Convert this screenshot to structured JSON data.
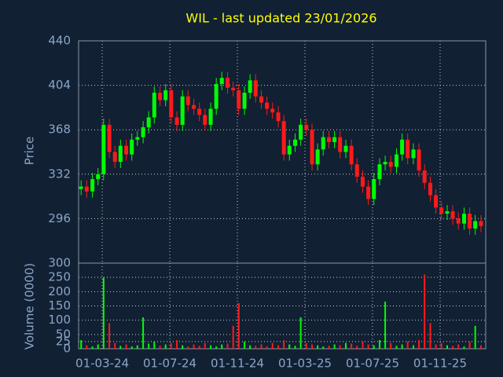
{
  "chart_data": [
    {
      "type": "candlestick",
      "title": "WIL - last updated 23/01/2026",
      "ylabel": "Price",
      "up_color": "#00ff00",
      "down_color": "#ff1a1a",
      "grid": true,
      "xlim": [
        0.6,
        24.7
      ],
      "ylim": [
        260,
        440
      ],
      "yticks": [
        296,
        332,
        368,
        404,
        440
      ],
      "xticks": [
        {
          "value": 2,
          "label": "01-03-24"
        },
        {
          "value": 6,
          "label": "01-07-24"
        },
        {
          "value": 10,
          "label": "01-11-24"
        },
        {
          "value": 14,
          "label": "01-03-25"
        },
        {
          "value": 18,
          "label": "01-07-25"
        },
        {
          "value": 22,
          "label": "01-11-25"
        }
      ],
      "x": [
        0.75,
        1.08,
        1.42,
        1.75,
        2.08,
        2.42,
        2.75,
        3.08,
        3.42,
        3.75,
        4.08,
        4.42,
        4.75,
        5.08,
        5.42,
        5.75,
        6.08,
        6.42,
        6.75,
        7.08,
        7.42,
        7.75,
        8.08,
        8.42,
        8.75,
        9.08,
        9.42,
        9.75,
        10.08,
        10.42,
        10.75,
        11.08,
        11.42,
        11.75,
        12.08,
        12.42,
        12.75,
        13.08,
        13.42,
        13.75,
        14.08,
        14.42,
        14.75,
        15.08,
        15.42,
        15.75,
        16.08,
        16.42,
        16.75,
        17.08,
        17.42,
        17.75,
        18.08,
        18.42,
        18.75,
        19.08,
        19.42,
        19.75,
        20.08,
        20.42,
        20.75,
        21.08,
        21.42,
        21.75,
        22.08,
        22.42,
        22.75,
        23.08,
        23.42,
        23.75,
        24.08,
        24.42
      ],
      "open": [
        320,
        322,
        318,
        328,
        332,
        372,
        350,
        342,
        355,
        348,
        360,
        362,
        370,
        378,
        398,
        392,
        400,
        378,
        372,
        395,
        388,
        385,
        380,
        372,
        385,
        405,
        410,
        402,
        400,
        385,
        398,
        408,
        395,
        390,
        385,
        382,
        375,
        348,
        355,
        360,
        372,
        368,
        340,
        352,
        362,
        358,
        362,
        350,
        355,
        340,
        330,
        322,
        312,
        328,
        340,
        342,
        338,
        348,
        360,
        345,
        352,
        335,
        325,
        315,
        305,
        300,
        302,
        296,
        292,
        300,
        288,
        294
      ],
      "high": [
        327,
        327,
        333,
        337,
        377,
        377,
        355,
        360,
        360,
        365,
        367,
        375,
        383,
        403,
        403,
        405,
        405,
        383,
        400,
        400,
        393,
        390,
        385,
        390,
        410,
        415,
        415,
        407,
        405,
        403,
        413,
        413,
        400,
        395,
        390,
        387,
        380,
        360,
        365,
        377,
        377,
        373,
        357,
        367,
        367,
        367,
        367,
        360,
        360,
        345,
        335,
        327,
        333,
        345,
        347,
        347,
        353,
        365,
        365,
        357,
        357,
        340,
        330,
        320,
        310,
        307,
        307,
        301,
        305,
        305,
        299,
        299
      ],
      "low": [
        315,
        313,
        313,
        323,
        327,
        345,
        337,
        337,
        343,
        343,
        355,
        357,
        365,
        373,
        387,
        387,
        373,
        367,
        367,
        383,
        380,
        375,
        367,
        367,
        380,
        400,
        397,
        395,
        380,
        380,
        393,
        390,
        385,
        380,
        377,
        370,
        343,
        343,
        350,
        355,
        363,
        335,
        335,
        347,
        353,
        353,
        345,
        345,
        335,
        325,
        317,
        307,
        307,
        323,
        335,
        333,
        333,
        343,
        340,
        340,
        330,
        320,
        310,
        300,
        295,
        295,
        291,
        287,
        287,
        283,
        283,
        285
      ],
      "close": [
        322,
        318,
        328,
        332,
        372,
        350,
        342,
        355,
        348,
        360,
        362,
        370,
        378,
        398,
        392,
        400,
        378,
        372,
        395,
        388,
        385,
        380,
        372,
        385,
        405,
        410,
        402,
        400,
        385,
        398,
        408,
        395,
        390,
        385,
        382,
        375,
        348,
        355,
        360,
        372,
        368,
        340,
        352,
        362,
        358,
        362,
        350,
        355,
        340,
        330,
        322,
        312,
        328,
        340,
        342,
        338,
        348,
        360,
        345,
        352,
        335,
        325,
        315,
        305,
        300,
        302,
        296,
        292,
        300,
        288,
        294,
        290
      ]
    },
    {
      "type": "bar",
      "ylabel": "Volume (0000)",
      "ylim": [
        0,
        300
      ],
      "yticks": [
        0,
        25,
        50,
        100,
        150,
        200,
        250,
        300
      ],
      "values": [
        30,
        12,
        8,
        15,
        250,
        90,
        20,
        10,
        15,
        8,
        12,
        110,
        18,
        25,
        10,
        15,
        20,
        30,
        12,
        8,
        15,
        10,
        20,
        12,
        8,
        15,
        18,
        80,
        160,
        25,
        12,
        10,
        15,
        8,
        20,
        12,
        30,
        15,
        10,
        110,
        20,
        15,
        12,
        8,
        10,
        15,
        12,
        20,
        18,
        10,
        25,
        15,
        12,
        30,
        165,
        20,
        10,
        15,
        25,
        12,
        30,
        260,
        90,
        15,
        20,
        12,
        10,
        15,
        8,
        25,
        80,
        12
      ]
    }
  ]
}
